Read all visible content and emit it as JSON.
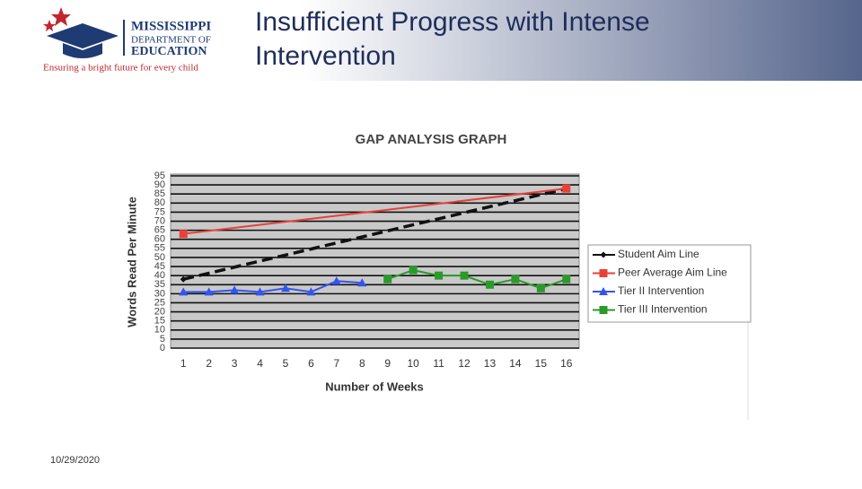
{
  "header": {
    "title": "Insufficient Progress with Intense Intervention",
    "logo": {
      "line1": "MISSISSIPPI",
      "line2": "DEPARTMENT OF",
      "line3": "EDUCATION",
      "tagline": "Ensuring a bright future for every child"
    }
  },
  "footer": {
    "date": "10/29/2020"
  },
  "chart_data": {
    "type": "line",
    "title": "GAP ANALYSIS GRAPH",
    "x_label": "Number of Weeks",
    "y_label": "Words Read Per Minute",
    "xlim": [
      0.5,
      16.5
    ],
    "xticks": [
      1,
      2,
      3,
      4,
      5,
      6,
      7,
      8,
      9,
      10,
      11,
      12,
      13,
      14,
      15,
      16
    ],
    "ylim": [
      0,
      95
    ],
    "yticks": [
      0,
      5,
      10,
      15,
      20,
      25,
      30,
      35,
      40,
      45,
      50,
      55,
      60,
      65,
      70,
      75,
      80,
      85,
      90,
      95
    ],
    "grid": true,
    "legend": "right",
    "series": [
      {
        "name": "Student Aim Line",
        "color": "#111111",
        "style": "dashed",
        "marker": "diamond",
        "x": [
          1,
          16
        ],
        "values": [
          38,
          88
        ]
      },
      {
        "name": "Peer Average Aim Line",
        "color": "#e8413a",
        "style": "solid",
        "marker": "square",
        "x": [
          1,
          16
        ],
        "values": [
          63,
          88
        ]
      },
      {
        "name": "Tier II Intervention",
        "color": "#3355ee",
        "style": "solid",
        "marker": "triangle",
        "x": [
          1,
          2,
          3,
          4,
          5,
          6,
          7,
          8
        ],
        "values": [
          31,
          31,
          32,
          31,
          33,
          31,
          37,
          36
        ]
      },
      {
        "name": "Tier III Intervention",
        "color": "#2a9a2a",
        "style": "solid",
        "marker": "square",
        "x": [
          9,
          10,
          11,
          12,
          13,
          14,
          15,
          16
        ],
        "values": [
          38,
          43,
          40,
          40,
          35,
          38,
          33,
          38
        ]
      }
    ]
  }
}
